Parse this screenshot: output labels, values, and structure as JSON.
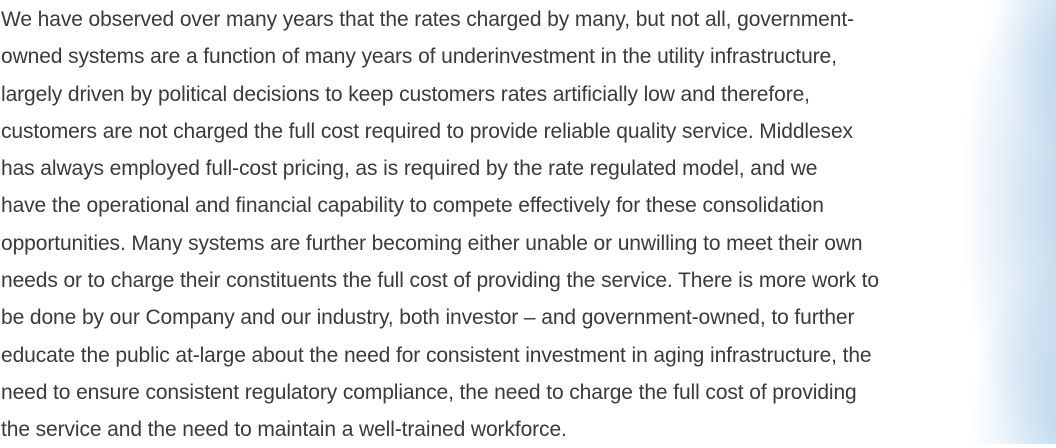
{
  "paragraph": {
    "lines": [
      "We have observed over many years that the rates charged by many, but not all, government-",
      "owned systems are a function of many years of underinvestment in the utility infrastructure,",
      "largely driven by political decisions to keep customers rates artificially low and therefore,",
      "customers are not charged the full cost required to provide reliable quality service. Middlesex",
      "has always employed full-cost pricing, as is required by the rate regulated model, and we",
      "have the operational and financial capability to compete effectively for these consolidation",
      "opportunities. Many systems are further becoming either unable or unwilling to meet their own",
      "needs or to charge their constituents the full cost of providing the service. There is more work to",
      "be done by our Company and our industry, both investor – and government-owned, to further",
      "educate the public at-large about the need for consistent investment in aging infrastructure, the",
      "need to ensure consistent regulatory compliance, the need to charge the full cost of providing",
      "the service and the need to maintain a well-trained workforce."
    ]
  }
}
